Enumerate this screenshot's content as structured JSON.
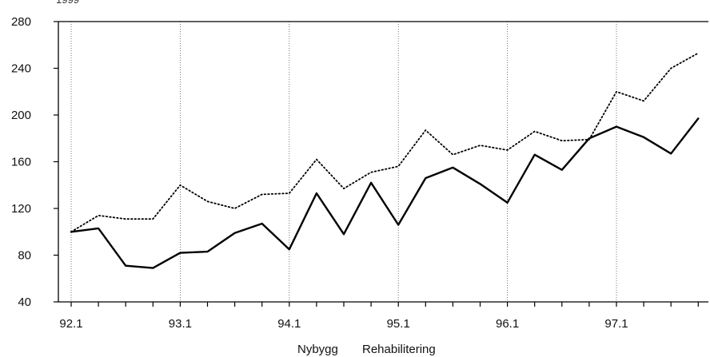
{
  "chart_data": {
    "type": "line",
    "top_fragment": "1999",
    "ylim": [
      40,
      280
    ],
    "y_ticks": [
      40,
      80,
      120,
      160,
      200,
      240,
      280
    ],
    "x_ticks": [
      "92.1",
      "93.1",
      "94.1",
      "95.1",
      "96.1",
      "97.1"
    ],
    "x": [
      "92.1",
      "92.2",
      "92.3",
      "92.4",
      "93.1",
      "93.2",
      "93.3",
      "93.4",
      "94.1",
      "94.2",
      "94.3",
      "94.4",
      "95.1",
      "95.2",
      "95.3",
      "95.4",
      "96.1",
      "96.2",
      "96.3",
      "96.4",
      "97.1",
      "97.2",
      "97.3",
      "97.4"
    ],
    "series": [
      {
        "name": "Nybygg",
        "style": "solid",
        "color": "#000000",
        "values": [
          100,
          103,
          71,
          69,
          82,
          83,
          99,
          107,
          85,
          133,
          98,
          142,
          106,
          146,
          155,
          141,
          125,
          166,
          153,
          180,
          190,
          181,
          167,
          197
        ]
      },
      {
        "name": "Rehabilitering",
        "style": "dotted",
        "color": "#000000",
        "values": [
          100,
          114,
          111,
          111,
          140,
          126,
          120,
          132,
          133,
          162,
          137,
          151,
          156,
          187,
          166,
          174,
          170,
          186,
          178,
          179,
          220,
          212,
          240,
          253
        ]
      }
    ],
    "grid": "vertical-dotted",
    "legend": "bottom-center"
  }
}
